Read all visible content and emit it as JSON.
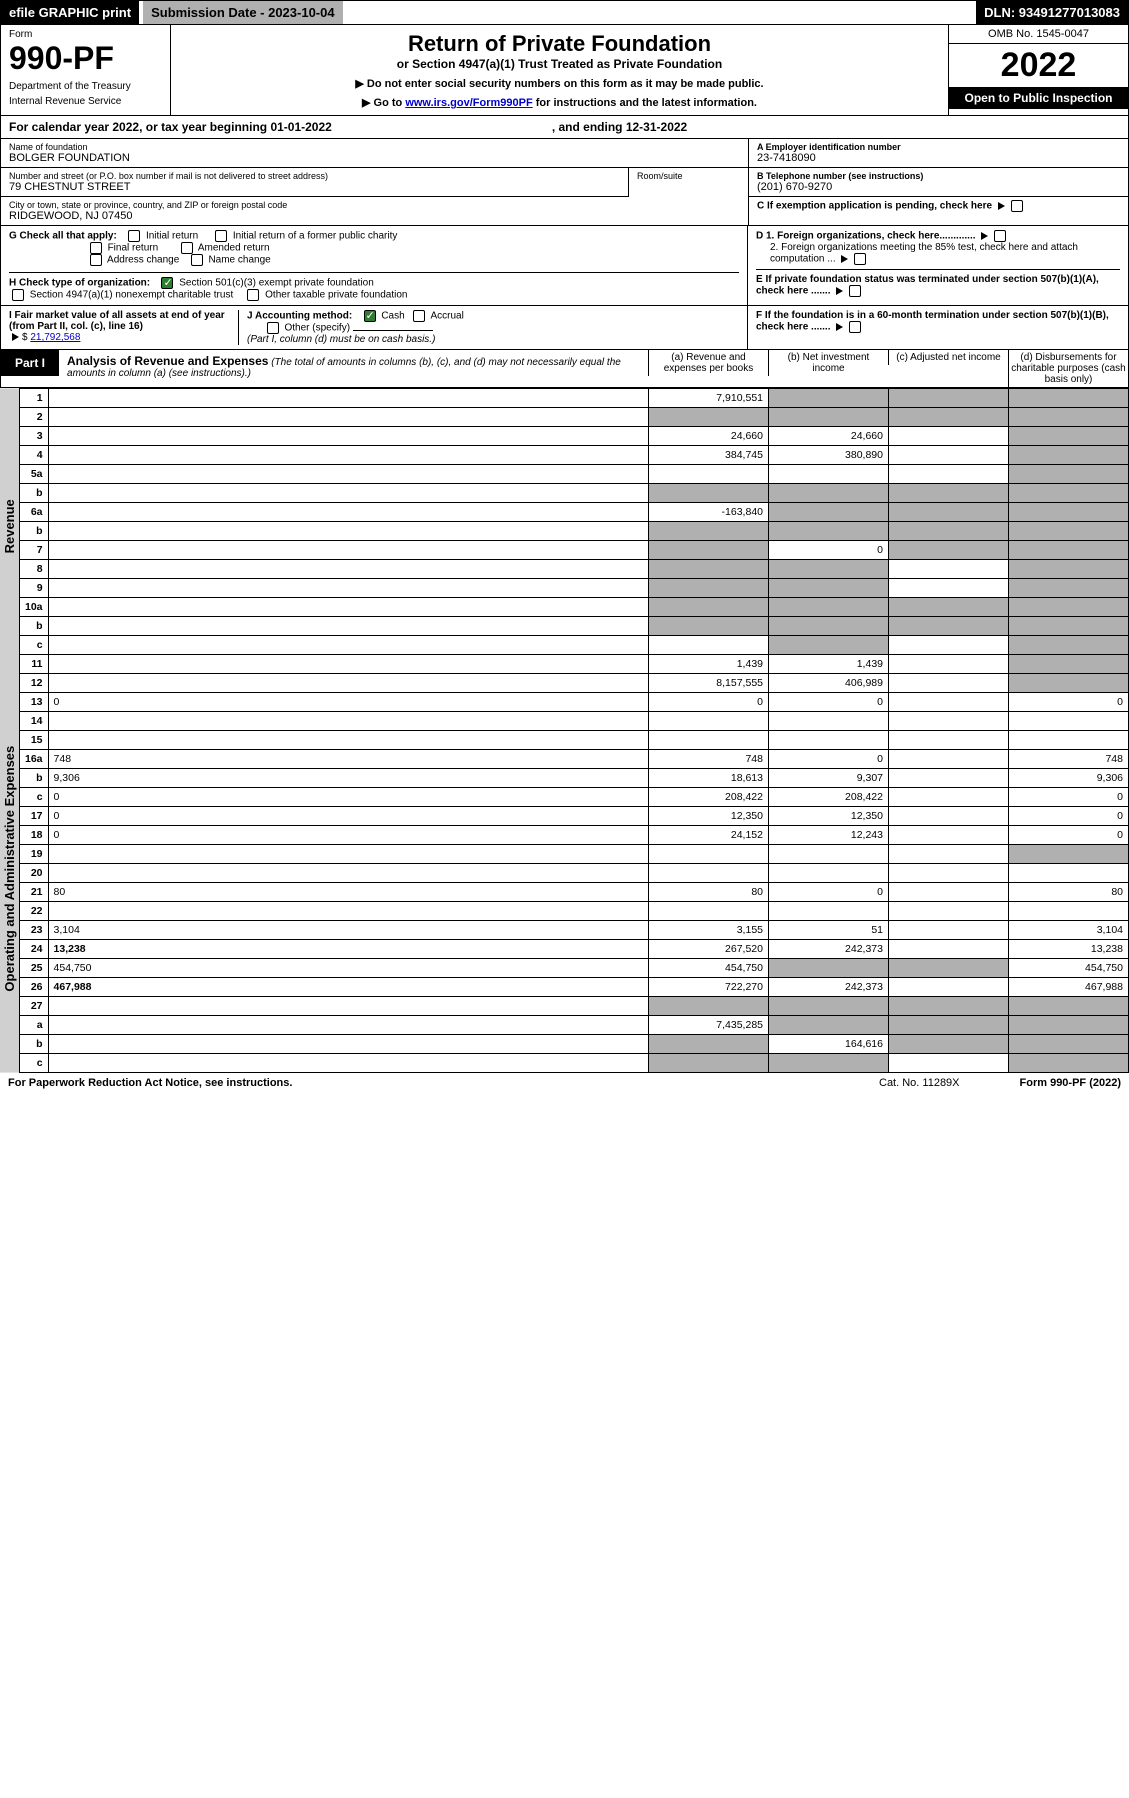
{
  "topbar": {
    "efile": "efile GRAPHIC print",
    "subdate_label": "Submission Date - 2023-10-04",
    "dln": "DLN: 93491277013083"
  },
  "header": {
    "form_word": "Form",
    "form_num": "990-PF",
    "dept": "Department of the Treasury",
    "irs": "Internal Revenue Service",
    "title": "Return of Private Foundation",
    "subtitle": "or Section 4947(a)(1) Trust Treated as Private Foundation",
    "note1": "▶ Do not enter social security numbers on this form as it may be made public.",
    "note2_pre": "▶ Go to ",
    "note2_link": "www.irs.gov/Form990PF",
    "note2_post": " for instructions and the latest information.",
    "omb": "OMB No. 1545-0047",
    "year": "2022",
    "open": "Open to Public Inspection"
  },
  "calrow": {
    "text": "For calendar year 2022, or tax year beginning 01-01-2022",
    "ending": ", and ending 12-31-2022"
  },
  "info": {
    "name_lbl": "Name of foundation",
    "name": "BOLGER FOUNDATION",
    "addr_lbl": "Number and street (or P.O. box number if mail is not delivered to street address)",
    "addr": "79 CHESTNUT STREET",
    "room_lbl": "Room/suite",
    "city_lbl": "City or town, state or province, country, and ZIP or foreign postal code",
    "city": "RIDGEWOOD, NJ  07450",
    "ein_lbl": "A Employer identification number",
    "ein": "23-7418090",
    "tel_lbl": "B Telephone number (see instructions)",
    "tel": "(201) 670-9270",
    "c_lbl": "C If exemption application is pending, check here",
    "d1": "D 1. Foreign organizations, check here.............",
    "d2": "2. Foreign organizations meeting the 85% test, check here and attach computation ...",
    "e": "E  If private foundation status was terminated under section 507(b)(1)(A), check here .......",
    "f": "F  If the foundation is in a 60-month termination under section 507(b)(1)(B), check here .......",
    "g_lbl": "G Check all that apply:",
    "g_initial": "Initial return",
    "g_initial_former": "Initial return of a former public charity",
    "g_final": "Final return",
    "g_amended": "Amended return",
    "g_address": "Address change",
    "g_name": "Name change",
    "h_lbl": "H Check type of organization:",
    "h_501c3": "Section 501(c)(3) exempt private foundation",
    "h_4947": "Section 4947(a)(1) nonexempt charitable trust",
    "h_other": "Other taxable private foundation",
    "i_lbl": "I Fair market value of all assets at end of year (from Part II, col. (c), line 16)",
    "i_val": "21,792,568",
    "j_lbl": "J Accounting method:",
    "j_cash": "Cash",
    "j_accrual": "Accrual",
    "j_other": "Other (specify)",
    "j_note": "(Part I, column (d) must be on cash basis.)"
  },
  "part1": {
    "tab": "Part I",
    "title": "Analysis of Revenue and Expenses",
    "note": "(The total of amounts in columns (b), (c), and (d) may not necessarily equal the amounts in column (a) (see instructions).)",
    "col_a": "(a) Revenue and expenses per books",
    "col_b": "(b) Net investment income",
    "col_c": "(c) Adjusted net income",
    "col_d": "(d) Disbursements for charitable purposes (cash basis only)",
    "sec_rev": "Revenue",
    "sec_exp": "Operating and Administrative Expenses"
  },
  "rows": [
    {
      "n": "1",
      "d": "",
      "a": "7,910,551",
      "b": "",
      "c": "",
      "grey_b": true,
      "grey_c": true,
      "grey_d": true
    },
    {
      "n": "2",
      "d": "",
      "a": "",
      "b": "",
      "c": "",
      "grey_a": true,
      "grey_b": true,
      "grey_c": true,
      "grey_d": true
    },
    {
      "n": "3",
      "d": "",
      "a": "24,660",
      "b": "24,660",
      "c": "",
      "grey_d": true
    },
    {
      "n": "4",
      "d": "",
      "a": "384,745",
      "b": "380,890",
      "c": "",
      "grey_d": true
    },
    {
      "n": "5a",
      "d": "",
      "a": "",
      "b": "",
      "c": "",
      "grey_d": true
    },
    {
      "n": "b",
      "d": "",
      "a": "",
      "b": "",
      "c": "",
      "grey_a": true,
      "grey_b": true,
      "grey_c": true,
      "grey_d": true
    },
    {
      "n": "6a",
      "d": "",
      "a": "-163,840",
      "b": "",
      "c": "",
      "grey_b": true,
      "grey_c": true,
      "grey_d": true
    },
    {
      "n": "b",
      "d": "",
      "a": "",
      "b": "",
      "c": "",
      "grey_a": true,
      "grey_b": true,
      "grey_c": true,
      "grey_d": true
    },
    {
      "n": "7",
      "d": "",
      "a": "",
      "b": "0",
      "c": "",
      "grey_a": true,
      "grey_c": true,
      "grey_d": true
    },
    {
      "n": "8",
      "d": "",
      "a": "",
      "b": "",
      "c": "",
      "grey_a": true,
      "grey_b": true,
      "grey_d": true
    },
    {
      "n": "9",
      "d": "",
      "a": "",
      "b": "",
      "c": "",
      "grey_a": true,
      "grey_b": true,
      "grey_d": true
    },
    {
      "n": "10a",
      "d": "",
      "a": "",
      "b": "",
      "c": "",
      "grey_a": true,
      "grey_b": true,
      "grey_c": true,
      "grey_d": true
    },
    {
      "n": "b",
      "d": "",
      "a": "",
      "b": "",
      "c": "",
      "grey_a": true,
      "grey_b": true,
      "grey_c": true,
      "grey_d": true
    },
    {
      "n": "c",
      "d": "",
      "a": "",
      "b": "",
      "c": "",
      "grey_b": true,
      "grey_d": true
    },
    {
      "n": "11",
      "d": "",
      "a": "1,439",
      "b": "1,439",
      "c": "",
      "grey_d": true
    },
    {
      "n": "12",
      "d": "",
      "a": "8,157,555",
      "b": "406,989",
      "c": "",
      "bold": true,
      "grey_d": true
    },
    {
      "n": "13",
      "d": "0",
      "a": "0",
      "b": "0",
      "c": ""
    },
    {
      "n": "14",
      "d": "",
      "a": "",
      "b": "",
      "c": ""
    },
    {
      "n": "15",
      "d": "",
      "a": "",
      "b": "",
      "c": ""
    },
    {
      "n": "16a",
      "d": "748",
      "a": "748",
      "b": "0",
      "c": ""
    },
    {
      "n": "b",
      "d": "9,306",
      "a": "18,613",
      "b": "9,307",
      "c": ""
    },
    {
      "n": "c",
      "d": "0",
      "a": "208,422",
      "b": "208,422",
      "c": ""
    },
    {
      "n": "17",
      "d": "0",
      "a": "12,350",
      "b": "12,350",
      "c": ""
    },
    {
      "n": "18",
      "d": "0",
      "a": "24,152",
      "b": "12,243",
      "c": ""
    },
    {
      "n": "19",
      "d": "",
      "a": "",
      "b": "",
      "c": "",
      "grey_d": true
    },
    {
      "n": "20",
      "d": "",
      "a": "",
      "b": "",
      "c": ""
    },
    {
      "n": "21",
      "d": "80",
      "a": "80",
      "b": "0",
      "c": ""
    },
    {
      "n": "22",
      "d": "",
      "a": "",
      "b": "",
      "c": ""
    },
    {
      "n": "23",
      "d": "3,104",
      "a": "3,155",
      "b": "51",
      "c": ""
    },
    {
      "n": "24",
      "d": "13,238",
      "a": "267,520",
      "b": "242,373",
      "c": "",
      "bold": true
    },
    {
      "n": "25",
      "d": "454,750",
      "a": "454,750",
      "b": "",
      "c": "",
      "grey_b": true,
      "grey_c": true
    },
    {
      "n": "26",
      "d": "467,988",
      "a": "722,270",
      "b": "242,373",
      "c": "",
      "bold": true
    },
    {
      "n": "27",
      "d": "",
      "a": "",
      "b": "",
      "c": "",
      "grey_a": true,
      "grey_b": true,
      "grey_c": true,
      "grey_d": true
    },
    {
      "n": "a",
      "d": "",
      "a": "7,435,285",
      "b": "",
      "c": "",
      "bold": true,
      "grey_b": true,
      "grey_c": true,
      "grey_d": true
    },
    {
      "n": "b",
      "d": "",
      "a": "",
      "b": "164,616",
      "c": "",
      "bold": true,
      "grey_a": true,
      "grey_c": true,
      "grey_d": true
    },
    {
      "n": "c",
      "d": "",
      "a": "",
      "b": "",
      "c": "",
      "bold": true,
      "grey_a": true,
      "grey_b": true,
      "grey_d": true
    }
  ],
  "footer": {
    "pra": "For Paperwork Reduction Act Notice, see instructions.",
    "cat": "Cat. No. 11289X",
    "form": "Form 990-PF (2022)"
  }
}
